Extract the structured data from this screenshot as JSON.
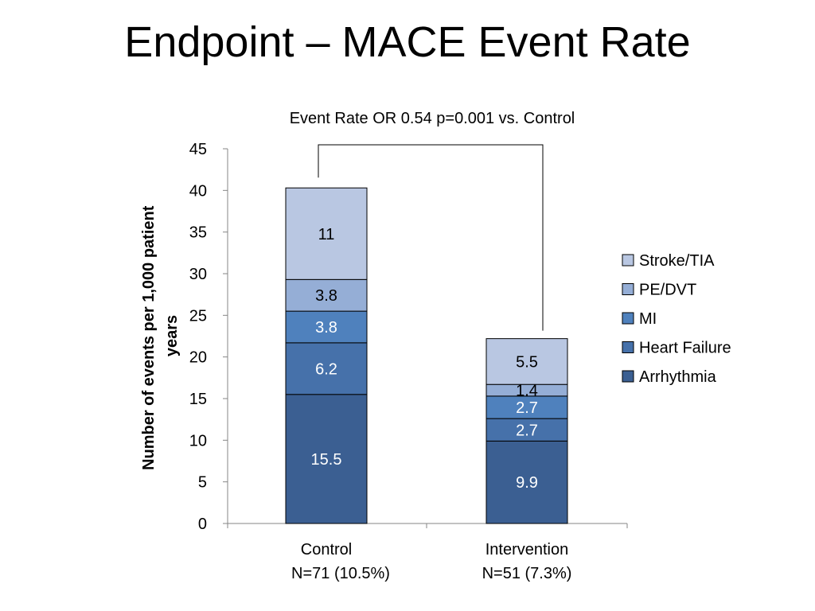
{
  "slide": {
    "title": "Endpoint – MACE Event Rate"
  },
  "chart_data": {
    "type": "bar",
    "stacked": true,
    "subtitle": "Event Rate OR 0.54 p=0.001 vs. Control",
    "ylabel_lines": [
      "Number of events per 1,000 patient",
      "years"
    ],
    "ylim": [
      0,
      45
    ],
    "yticks": [
      0,
      5,
      10,
      15,
      20,
      25,
      30,
      35,
      40,
      45
    ],
    "grid": false,
    "legend_position": "right",
    "categories": [
      {
        "name": "Control",
        "sublabel": "N=71 (10.5%)"
      },
      {
        "name": "Intervention",
        "sublabel": "N=51 (7.3%)"
      }
    ],
    "series": [
      {
        "name": "Arrhythmia",
        "color": "#3b5f92",
        "label_color": "#ffffff",
        "values": [
          15.5,
          9.9
        ],
        "labels": [
          "15.5",
          "9.9"
        ]
      },
      {
        "name": "Heart Failure",
        "color": "#4671aa",
        "label_color": "#ffffff",
        "values": [
          6.2,
          2.7
        ],
        "labels": [
          "6.2",
          "2.7"
        ]
      },
      {
        "name": "MI",
        "color": "#4f81bd",
        "label_color": "#ffffff",
        "values": [
          3.8,
          2.7
        ],
        "labels": [
          "3.8",
          "2.7"
        ]
      },
      {
        "name": "PE/DVT",
        "color": "#95aed6",
        "label_color": "#000000",
        "values": [
          3.8,
          1.4
        ],
        "labels": [
          "3.8",
          "1.4"
        ]
      },
      {
        "name": "Stroke/TIA",
        "color": "#b9c7e2",
        "label_color": "#000000",
        "values": [
          11,
          5.5
        ],
        "labels": [
          "11",
          "5.5"
        ]
      }
    ],
    "comparison_bracket": {
      "from": "Control",
      "to": "Intervention"
    }
  }
}
